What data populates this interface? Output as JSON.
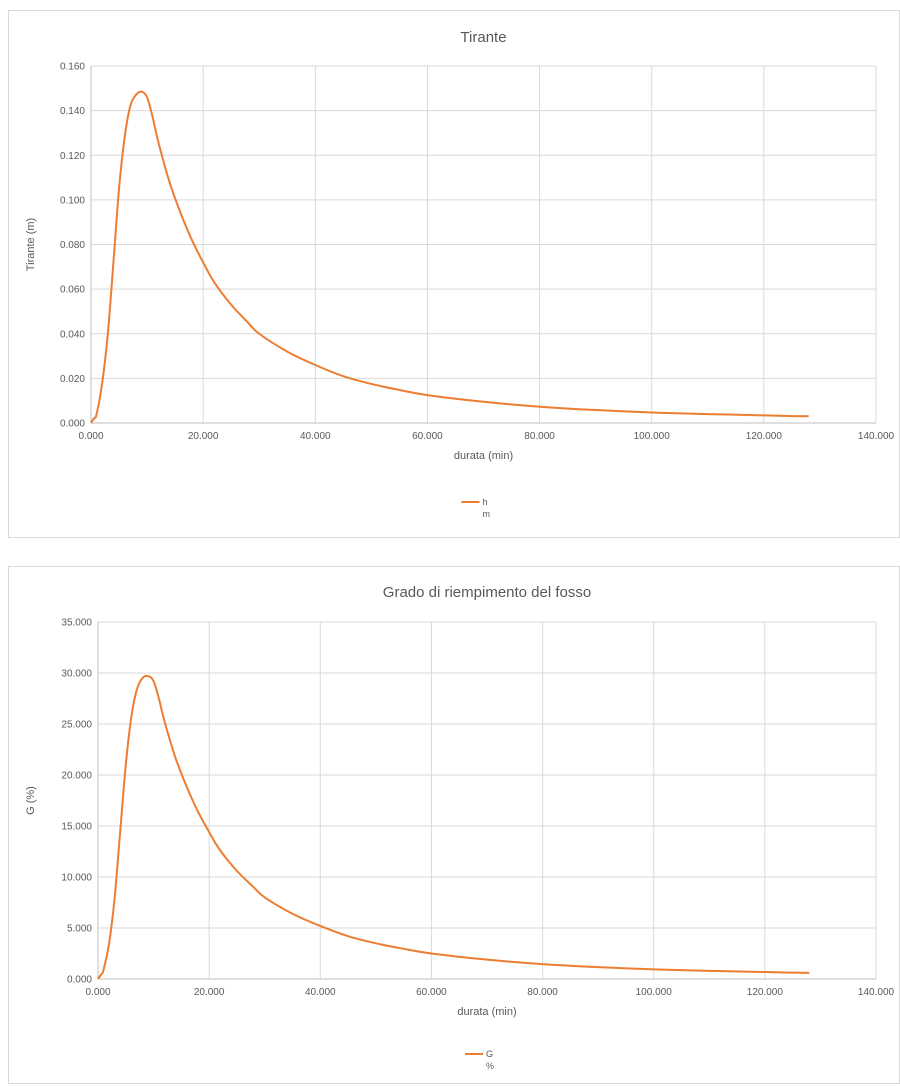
{
  "chart_data": [
    {
      "type": "line",
      "title": "Tirante",
      "xlabel": "durata (min)",
      "ylabel": "Tirante (m)",
      "xlim": [
        0,
        140
      ],
      "ylim": [
        0,
        0.16
      ],
      "x_ticks": [
        "0.000",
        "20.000",
        "40.000",
        "60.000",
        "80.000",
        "100.000",
        "120.000",
        "140.000"
      ],
      "y_ticks": [
        "0.000",
        "0.020",
        "0.040",
        "0.060",
        "0.080",
        "0.100",
        "0.120",
        "0.140",
        "0.160"
      ],
      "grid": true,
      "legend_position": "bottom",
      "color": "#ED7D31",
      "series": [
        {
          "name": "h",
          "unit": "m",
          "x": [
            0,
            0.5,
            1,
            2,
            3,
            4,
            5,
            6,
            7,
            8,
            9,
            10,
            11,
            12,
            14,
            16,
            18,
            20,
            22,
            25,
            28,
            30,
            35,
            40,
            45,
            50,
            55,
            60,
            70,
            80,
            90,
            100,
            110,
            120,
            125,
            128
          ],
          "y": [
            0,
            0.002,
            0.004,
            0.018,
            0.04,
            0.072,
            0.105,
            0.128,
            0.142,
            0.147,
            0.1485,
            0.146,
            0.137,
            0.126,
            0.108,
            0.094,
            0.082,
            0.072,
            0.063,
            0.053,
            0.045,
            0.04,
            0.032,
            0.026,
            0.021,
            0.0175,
            0.0148,
            0.0125,
            0.0095,
            0.0073,
            0.0058,
            0.0047,
            0.004,
            0.0034,
            0.0031,
            0.003
          ]
        }
      ]
    },
    {
      "type": "line",
      "title": "Grado di riempimento del fosso",
      "xlabel": "durata (min)",
      "ylabel": "G (%)",
      "xlim": [
        0,
        140
      ],
      "ylim": [
        0,
        35
      ],
      "x_ticks": [
        "0.000",
        "20.000",
        "40.000",
        "60.000",
        "80.000",
        "100.000",
        "120.000",
        "140.000"
      ],
      "y_ticks": [
        "0.000",
        "5.000",
        "10.000",
        "15.000",
        "20.000",
        "25.000",
        "30.000",
        "35.000"
      ],
      "grid": true,
      "legend_position": "bottom",
      "color": "#ED7D31",
      "series": [
        {
          "name": "G",
          "unit": "%",
          "x": [
            0,
            0.5,
            1,
            2,
            3,
            4,
            5,
            6,
            7,
            8,
            9,
            10,
            11,
            12,
            14,
            16,
            18,
            20,
            22,
            25,
            28,
            30,
            35,
            40,
            45,
            50,
            55,
            60,
            70,
            80,
            90,
            100,
            110,
            120,
            125,
            128
          ],
          "y": [
            0,
            0.4,
            0.9,
            3.5,
            8.0,
            14.5,
            21.0,
            25.7,
            28.4,
            29.5,
            29.7,
            29.2,
            27.4,
            25.2,
            21.6,
            18.8,
            16.4,
            14.4,
            12.6,
            10.6,
            9.0,
            8.0,
            6.4,
            5.2,
            4.2,
            3.5,
            2.96,
            2.5,
            1.9,
            1.46,
            1.16,
            0.94,
            0.8,
            0.68,
            0.62,
            0.6
          ]
        }
      ]
    }
  ]
}
